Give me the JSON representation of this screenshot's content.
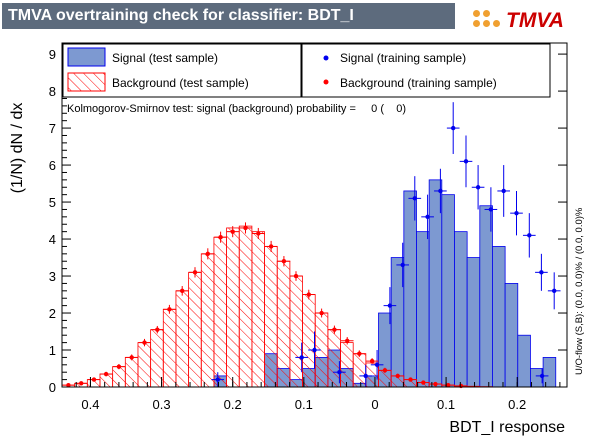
{
  "title": "TMVA overtraining check for classifier: BDT_I",
  "logo": {
    "text": "TMVA"
  },
  "ks_text": "Kolmogorov-Smirnov test: signal (background) probability =     0 (    0)",
  "side_text": "U/O-flow (S,B): (0.0, 0.0)% / (0.0, 0.0)%",
  "colors": {
    "signal_fill": "#7d99d1",
    "signal_edge": "#0000ee",
    "background": "#ff0000",
    "title_bar": "#5d6b7d"
  },
  "chart_data": {
    "type": "bar",
    "xlabel": "BDT_I response",
    "ylabel": "(1/N) dN / dx",
    "xlim": [
      0.44,
      -0.27
    ],
    "ylim": [
      0,
      9.3
    ],
    "x_ticks": [
      "0.4",
      "0.3",
      "0.2",
      "0.1",
      "0",
      "0.1",
      "0.2"
    ],
    "x_tick_values": [
      0.4,
      0.3,
      0.2,
      0.1,
      0.0,
      -0.1,
      -0.2
    ],
    "y_ticks": [
      0,
      1,
      2,
      3,
      4,
      5,
      6,
      7,
      8,
      9
    ],
    "bin_edges_start": 0.44,
    "bin_width": 0.0178,
    "legend": [
      {
        "label": "Signal (test sample)",
        "style": "signal-box"
      },
      {
        "label": "Signal (training sample)",
        "style": "blue-dot"
      },
      {
        "label": "Background (test sample)",
        "style": "hatched-box"
      },
      {
        "label": "Background (training sample)",
        "style": "red-dot"
      }
    ],
    "series": [
      {
        "values": [
          0,
          0,
          0,
          0,
          0,
          0,
          0,
          0,
          0,
          0,
          0,
          0,
          0.3,
          0,
          0,
          0,
          0.9,
          0.5,
          0.2,
          0.5,
          0.8,
          1.0,
          0.5,
          0.1,
          0.3,
          2.0,
          3.5,
          5.3,
          4.2,
          5.6,
          5.2,
          4.2,
          3.5,
          4.9,
          3.8,
          2.8,
          1.4,
          0.5,
          0.8
        ]
      },
      {
        "values": [
          0.05,
          0.1,
          0.2,
          0.35,
          0.55,
          0.8,
          1.2,
          1.55,
          2.1,
          2.6,
          3.1,
          3.6,
          4.05,
          4.3,
          4.35,
          4.2,
          3.8,
          3.4,
          3.0,
          2.5,
          2.0,
          1.55,
          1.2,
          0.9,
          0.65,
          0.45,
          0.3,
          0.2,
          0.12,
          0.08,
          0.05,
          0.03,
          0.02,
          0.01,
          0,
          0,
          0,
          0,
          0
        ]
      },
      {
        "points": [
          [
            0.221,
            0.2
          ],
          [
            0.103,
            0.8
          ],
          [
            0.085,
            1.0
          ],
          [
            0.05,
            0.4
          ],
          [
            0.013,
            0.3
          ],
          [
            -0.003,
            0.6
          ],
          [
            -0.021,
            2.2
          ],
          [
            -0.039,
            3.3
          ],
          [
            -0.056,
            5.1
          ],
          [
            -0.074,
            4.6
          ],
          [
            -0.092,
            5.3
          ],
          [
            -0.11,
            7.0
          ],
          [
            -0.128,
            6.1
          ],
          [
            -0.145,
            5.4
          ],
          [
            -0.163,
            4.8
          ],
          [
            -0.181,
            5.3
          ],
          [
            -0.199,
            4.7
          ],
          [
            -0.217,
            4.1
          ],
          [
            -0.234,
            3.1
          ],
          [
            -0.252,
            2.6
          ],
          [
            -0.235,
            0.3
          ]
        ],
        "errors": [
          0.2,
          0.4,
          0.5,
          0.3,
          0.3,
          0.4,
          0.5,
          0.6,
          0.6,
          0.6,
          0.6,
          0.7,
          0.7,
          0.6,
          0.6,
          0.7,
          0.6,
          0.6,
          0.5,
          0.5,
          0.2
        ]
      },
      {
        "points": [
          [
            0.431,
            0.05
          ],
          [
            0.413,
            0.1
          ],
          [
            0.395,
            0.2
          ],
          [
            0.378,
            0.35
          ],
          [
            0.36,
            0.55
          ],
          [
            0.342,
            0.8
          ],
          [
            0.324,
            1.2
          ],
          [
            0.306,
            1.55
          ],
          [
            0.289,
            2.1
          ],
          [
            0.271,
            2.6
          ],
          [
            0.253,
            3.1
          ],
          [
            0.235,
            3.6
          ],
          [
            0.217,
            4.05
          ],
          [
            0.2,
            4.2
          ],
          [
            0.182,
            4.3
          ],
          [
            0.164,
            4.15
          ],
          [
            0.146,
            3.8
          ],
          [
            0.128,
            3.4
          ],
          [
            0.111,
            3.0
          ],
          [
            0.093,
            2.5
          ],
          [
            0.075,
            2.0
          ],
          [
            0.057,
            1.55
          ],
          [
            0.039,
            1.25
          ],
          [
            0.022,
            0.9
          ],
          [
            0.004,
            0.7
          ],
          [
            -0.014,
            0.45
          ],
          [
            -0.032,
            0.3
          ],
          [
            -0.05,
            0.2
          ],
          [
            -0.068,
            0.12
          ],
          [
            -0.085,
            0.08
          ],
          [
            -0.103,
            0.05
          ],
          [
            -0.121,
            0.03
          ]
        ],
        "errors": [
          0.03,
          0.04,
          0.05,
          0.06,
          0.07,
          0.08,
          0.1,
          0.1,
          0.12,
          0.13,
          0.14,
          0.15,
          0.15,
          0.15,
          0.15,
          0.15,
          0.15,
          0.14,
          0.13,
          0.13,
          0.12,
          0.11,
          0.1,
          0.09,
          0.08,
          0.07,
          0.06,
          0.05,
          0.04,
          0.03,
          0.03,
          0.02
        ]
      }
    ]
  }
}
